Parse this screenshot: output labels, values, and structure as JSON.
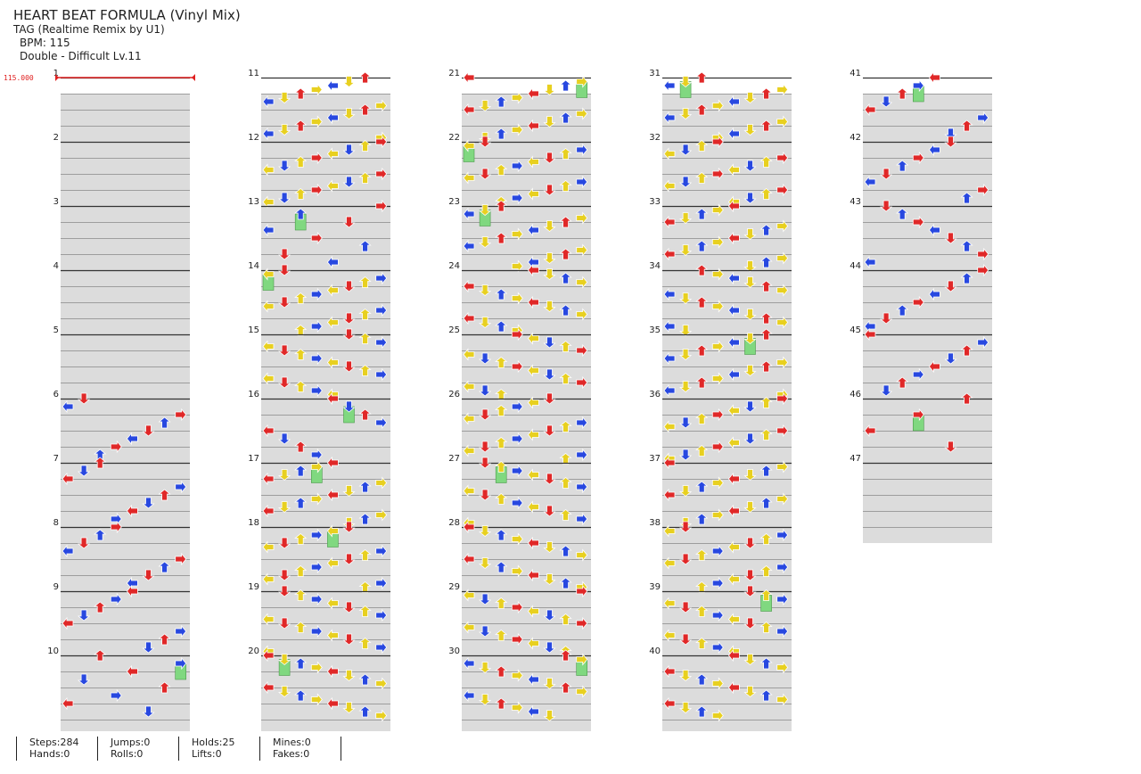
{
  "header": {
    "title": "HEART BEAT FORMULA (Vinyl Mix)",
    "subtitle": "TAG (Realtime Remix by U1)",
    "bpm_text": "BPM: 115",
    "difficulty_text": "Double - Difficult  Lv.11"
  },
  "bpm_marker": {
    "label": "115.000",
    "color": "#e02020"
  },
  "measures": [
    {
      "number": "1",
      "notes": ""
    },
    {
      "number": "2",
      "notes": ""
    },
    {
      "number": "3",
      "notes": ""
    },
    {
      "number": "4",
      "notes": ""
    },
    {
      "number": "5",
      "notes": ""
    },
    {
      "number": "6",
      "notes": "U8"
    },
    {
      "number": "7",
      "notes": "U8"
    },
    {
      "number": "8",
      "notes": "L8"
    },
    {
      "number": "9",
      "notes": "L8"
    },
    {
      "number": "10",
      "notes": "H8"
    },
    {
      "number": "11",
      "notes": "L16"
    },
    {
      "number": "12",
      "notes": "L16"
    },
    {
      "number": "13",
      "notes": "J8H"
    },
    {
      "number": "14",
      "notes": "L16H"
    },
    {
      "number": "15",
      "notes": "R16"
    },
    {
      "number": "16",
      "notes": "R8H"
    },
    {
      "number": "17",
      "notes": "L16H"
    },
    {
      "number": "18",
      "notes": "L16H"
    },
    {
      "number": "19",
      "notes": "R16"
    },
    {
      "number": "20",
      "notes": "R16H"
    },
    {
      "number": "21",
      "notes": "L16H"
    },
    {
      "number": "22",
      "notes": "L16H"
    },
    {
      "number": "23",
      "notes": "L16H"
    },
    {
      "number": "24",
      "notes": "R16"
    },
    {
      "number": "25",
      "notes": "R16"
    },
    {
      "number": "26",
      "notes": "L16"
    },
    {
      "number": "27",
      "notes": "R16H"
    },
    {
      "number": "28",
      "notes": "R16"
    },
    {
      "number": "29",
      "notes": "R16"
    },
    {
      "number": "30",
      "notes": "R16H"
    },
    {
      "number": "31",
      "notes": "L16H"
    },
    {
      "number": "32",
      "notes": "L16"
    },
    {
      "number": "33",
      "notes": "L16"
    },
    {
      "number": "34",
      "notes": "R16"
    },
    {
      "number": "35",
      "notes": "L16H"
    },
    {
      "number": "36",
      "notes": "L16"
    },
    {
      "number": "37",
      "notes": "L16"
    },
    {
      "number": "38",
      "notes": "L16"
    },
    {
      "number": "39",
      "notes": "R16H"
    },
    {
      "number": "40",
      "notes": "R16"
    },
    {
      "number": "41",
      "notes": "L8H"
    },
    {
      "number": "42",
      "notes": "L8"
    },
    {
      "number": "43",
      "notes": "R8"
    },
    {
      "number": "44",
      "notes": "L8"
    },
    {
      "number": "45",
      "notes": "L8"
    },
    {
      "number": "46",
      "notes": "H4"
    },
    {
      "number": "47",
      "notes": ""
    }
  ],
  "colors": {
    "quarter": "#e02828",
    "eighth": "#2848e0",
    "sixteenth": "#e8d020",
    "hold": "#80d880",
    "lane": "#dcdcdc",
    "line": "#333333"
  },
  "arrow_icons": [
    "arrow-left-icon",
    "arrow-down-icon",
    "arrow-up-icon",
    "arrow-right-icon"
  ],
  "footer": {
    "c1a": "Steps:284",
    "c1b": "Hands:0",
    "c2a": "Jumps:0",
    "c2b": "Rolls:0",
    "c3a": "Holds:25",
    "c3b": "Lifts:0",
    "c4a": "Mines:0",
    "c4b": "Fakes:0"
  }
}
